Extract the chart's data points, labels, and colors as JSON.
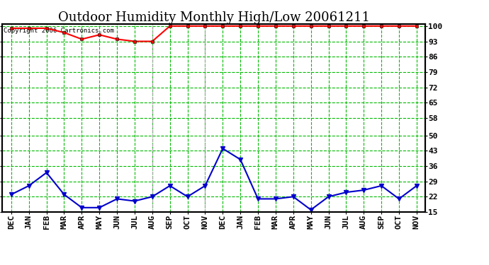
{
  "title": "Outdoor Humidity Monthly High/Low 20061211",
  "copyright_text": "Copyright 2006 Cartronics.com",
  "x_labels": [
    "DEC",
    "JAN",
    "FEB",
    "MAR",
    "APR",
    "MAY",
    "JUN",
    "JUL",
    "AUG",
    "SEP",
    "OCT",
    "NOV",
    "DEC",
    "JAN",
    "FEB",
    "MAR",
    "APR",
    "MAY",
    "JUN",
    "JUL",
    "AUG",
    "SEP",
    "OCT",
    "NOV"
  ],
  "high_values": [
    99,
    99,
    99,
    97,
    94,
    96,
    94,
    93,
    93,
    100,
    100,
    100,
    100,
    100,
    100,
    100,
    100,
    100,
    100,
    100,
    100,
    100,
    100,
    100
  ],
  "low_values": [
    23,
    27,
    33,
    23,
    17,
    17,
    21,
    20,
    22,
    27,
    22,
    27,
    44,
    39,
    21,
    21,
    22,
    16,
    22,
    24,
    25,
    27,
    21,
    27
  ],
  "high_color": "#ff0000",
  "low_color": "#0000cc",
  "bg_color": "#ffffff",
  "grid_color": "#00bb00",
  "border_color": "#000000",
  "y_ticks": [
    15,
    22,
    29,
    36,
    43,
    50,
    58,
    65,
    72,
    79,
    86,
    93,
    100
  ],
  "ylim_min": 15,
  "ylim_max": 101,
  "title_fontsize": 13,
  "tick_fontsize": 8,
  "copyright_fontsize": 6.5,
  "vline_positions": [
    8,
    11
  ],
  "vline_color": "#aaaaaa"
}
